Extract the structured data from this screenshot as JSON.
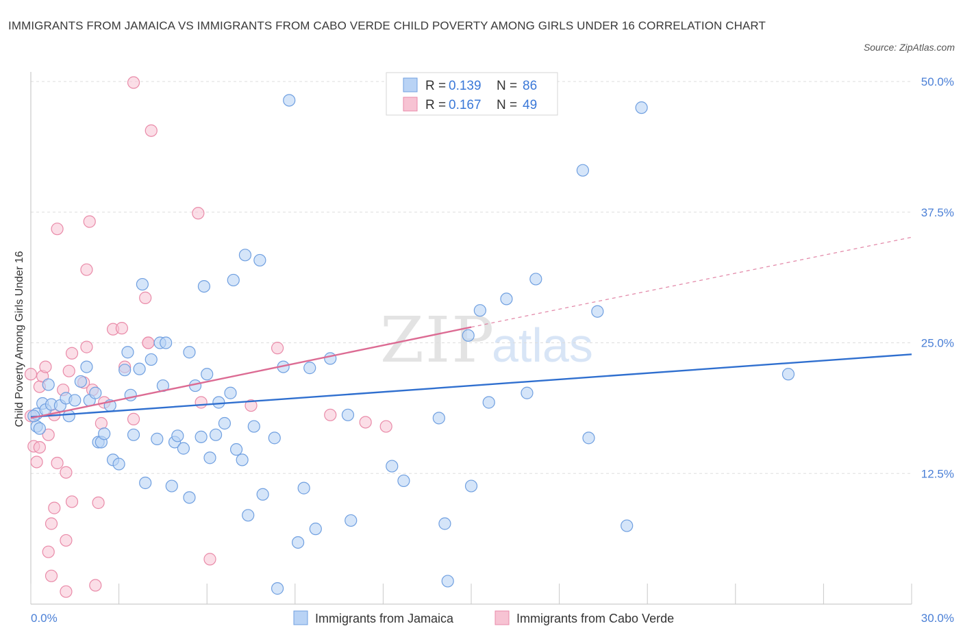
{
  "title": "IMMIGRANTS FROM JAMAICA VS IMMIGRANTS FROM CABO VERDE CHILD POVERTY AMONG GIRLS UNDER 16 CORRELATION CHART",
  "source": "Source: ZipAtlas.com",
  "watermark": {
    "zip": "ZIP",
    "atlas": "atlas"
  },
  "legend": {
    "r_label": "R =",
    "n_label": "N =",
    "rows": [
      {
        "r": "0.139",
        "n": "86"
      },
      {
        "r": "0.167",
        "n": "49"
      }
    ]
  },
  "colors": {
    "jamaica_fill": "#b9d3f5",
    "jamaica_stroke": "#6f9fe0",
    "jamaica_line": "#2f6fcf",
    "caboverde_fill": "#f7c3d3",
    "caboverde_stroke": "#e98aa8",
    "caboverde_line": "#dc6b93",
    "tick_text": "#4a7fd6",
    "grid": "#dddddd"
  },
  "chart_data": {
    "type": "scatter",
    "xlabel": "",
    "ylabel": "Child Poverty Among Girls Under 16",
    "xlim": [
      0,
      30
    ],
    "ylim": [
      0,
      50
    ],
    "x_tick_labels": [
      {
        "value": 0,
        "label": "0.0%"
      },
      {
        "value": 30,
        "label": "30.0%"
      }
    ],
    "y_tick_labels": [
      {
        "value": 12.5,
        "label": "12.5%"
      },
      {
        "value": 25,
        "label": "25.0%"
      },
      {
        "value": 37.5,
        "label": "37.5%"
      },
      {
        "value": 50,
        "label": "50.0%"
      }
    ],
    "grid": "horizontal dashed",
    "series": [
      {
        "name": "Immigrants from Jamaica",
        "trend": {
          "x": [
            0,
            30
          ],
          "y": [
            17.9,
            23.9
          ],
          "style": "solid"
        },
        "points": [
          [
            0.2,
            18.2
          ],
          [
            0.2,
            17.0
          ],
          [
            0.3,
            16.8
          ],
          [
            0.4,
            19.2
          ],
          [
            0.5,
            18.6
          ],
          [
            0.6,
            21.0
          ],
          [
            0.7,
            19.1
          ],
          [
            1.0,
            19.0
          ],
          [
            1.2,
            19.7
          ],
          [
            1.3,
            18.0
          ],
          [
            1.5,
            19.5
          ],
          [
            1.7,
            21.3
          ],
          [
            1.9,
            22.7
          ],
          [
            2.0,
            19.5
          ],
          [
            2.2,
            20.2
          ],
          [
            2.3,
            15.5
          ],
          [
            2.4,
            15.5
          ],
          [
            2.5,
            16.3
          ],
          [
            2.7,
            19.0
          ],
          [
            2.8,
            13.8
          ],
          [
            3.0,
            13.4
          ],
          [
            3.2,
            22.4
          ],
          [
            3.3,
            24.1
          ],
          [
            3.4,
            20.0
          ],
          [
            3.5,
            16.2
          ],
          [
            3.7,
            22.5
          ],
          [
            3.8,
            30.6
          ],
          [
            3.9,
            11.6
          ],
          [
            4.1,
            23.4
          ],
          [
            4.3,
            15.8
          ],
          [
            4.4,
            25.0
          ],
          [
            4.5,
            20.9
          ],
          [
            4.6,
            25.0
          ],
          [
            4.8,
            11.3
          ],
          [
            4.9,
            15.5
          ],
          [
            5.0,
            16.1
          ],
          [
            5.2,
            14.9
          ],
          [
            5.4,
            10.2
          ],
          [
            5.4,
            24.1
          ],
          [
            5.6,
            20.9
          ],
          [
            5.8,
            16.0
          ],
          [
            5.9,
            30.4
          ],
          [
            6.0,
            22.0
          ],
          [
            6.1,
            14.0
          ],
          [
            6.3,
            16.2
          ],
          [
            6.4,
            19.3
          ],
          [
            6.6,
            17.3
          ],
          [
            6.8,
            20.2
          ],
          [
            6.9,
            31.0
          ],
          [
            7.0,
            14.8
          ],
          [
            7.2,
            13.8
          ],
          [
            7.3,
            33.4
          ],
          [
            7.4,
            8.5
          ],
          [
            7.6,
            17.0
          ],
          [
            7.8,
            32.9
          ],
          [
            7.9,
            10.5
          ],
          [
            8.3,
            15.9
          ],
          [
            8.4,
            1.5
          ],
          [
            8.6,
            22.7
          ],
          [
            8.8,
            48.2
          ],
          [
            9.1,
            5.9
          ],
          [
            9.3,
            11.1
          ],
          [
            9.5,
            22.6
          ],
          [
            9.7,
            7.2
          ],
          [
            10.2,
            23.5
          ],
          [
            10.8,
            18.1
          ],
          [
            10.9,
            8.0
          ],
          [
            12.3,
            13.2
          ],
          [
            12.7,
            11.8
          ],
          [
            13.9,
            17.8
          ],
          [
            14.1,
            7.7
          ],
          [
            14.2,
            2.2
          ],
          [
            14.9,
            25.7
          ],
          [
            15.0,
            11.3
          ],
          [
            15.3,
            28.1
          ],
          [
            15.6,
            19.3
          ],
          [
            16.2,
            29.2
          ],
          [
            16.9,
            20.2
          ],
          [
            17.2,
            31.1
          ],
          [
            18.8,
            41.5
          ],
          [
            19.0,
            15.9
          ],
          [
            19.3,
            28.0
          ],
          [
            20.3,
            7.5
          ],
          [
            20.8,
            47.5
          ],
          [
            25.8,
            22.0
          ],
          [
            0.1,
            18.0
          ]
        ]
      },
      {
        "name": "Immigrants from Cabo Verde",
        "trend": {
          "x": [
            0,
            15
          ],
          "y": [
            17.8,
            26.5
          ],
          "style": "solid",
          "extended_x": [
            15,
            30
          ],
          "extended_y": [
            26.5,
            35.1
          ],
          "extended_style": "dashed"
        },
        "points": [
          [
            0.0,
            22.0
          ],
          [
            0.1,
            15.1
          ],
          [
            0.2,
            13.6
          ],
          [
            0.3,
            20.8
          ],
          [
            0.3,
            15.0
          ],
          [
            0.4,
            21.8
          ],
          [
            0.5,
            22.7
          ],
          [
            0.6,
            5.0
          ],
          [
            0.6,
            16.2
          ],
          [
            0.7,
            7.7
          ],
          [
            0.7,
            2.7
          ],
          [
            0.8,
            18.1
          ],
          [
            0.8,
            9.2
          ],
          [
            0.9,
            35.9
          ],
          [
            0.9,
            13.5
          ],
          [
            1.1,
            20.5
          ],
          [
            1.2,
            6.1
          ],
          [
            1.2,
            12.6
          ],
          [
            1.2,
            1.2
          ],
          [
            1.3,
            22.3
          ],
          [
            1.4,
            9.8
          ],
          [
            1.4,
            24.0
          ],
          [
            1.8,
            21.2
          ],
          [
            1.9,
            24.6
          ],
          [
            1.9,
            32.0
          ],
          [
            2.0,
            36.6
          ],
          [
            2.1,
            20.5
          ],
          [
            2.2,
            1.8
          ],
          [
            2.3,
            9.7
          ],
          [
            2.4,
            17.3
          ],
          [
            2.5,
            19.3
          ],
          [
            2.8,
            26.3
          ],
          [
            3.1,
            26.4
          ],
          [
            3.2,
            22.7
          ],
          [
            3.5,
            49.9
          ],
          [
            3.5,
            17.7
          ],
          [
            3.9,
            29.3
          ],
          [
            4.0,
            25.0
          ],
          [
            4.0,
            25.0
          ],
          [
            4.1,
            45.3
          ],
          [
            5.7,
            37.4
          ],
          [
            5.8,
            19.3
          ],
          [
            6.1,
            4.3
          ],
          [
            7.5,
            19.0
          ],
          [
            8.4,
            24.5
          ],
          [
            10.2,
            18.1
          ],
          [
            11.4,
            17.4
          ],
          [
            12.1,
            17.0
          ],
          [
            0.0,
            18.0
          ]
        ]
      }
    ]
  },
  "bottom_legend": [
    "Immigrants from Jamaica",
    "Immigrants from Cabo Verde"
  ]
}
